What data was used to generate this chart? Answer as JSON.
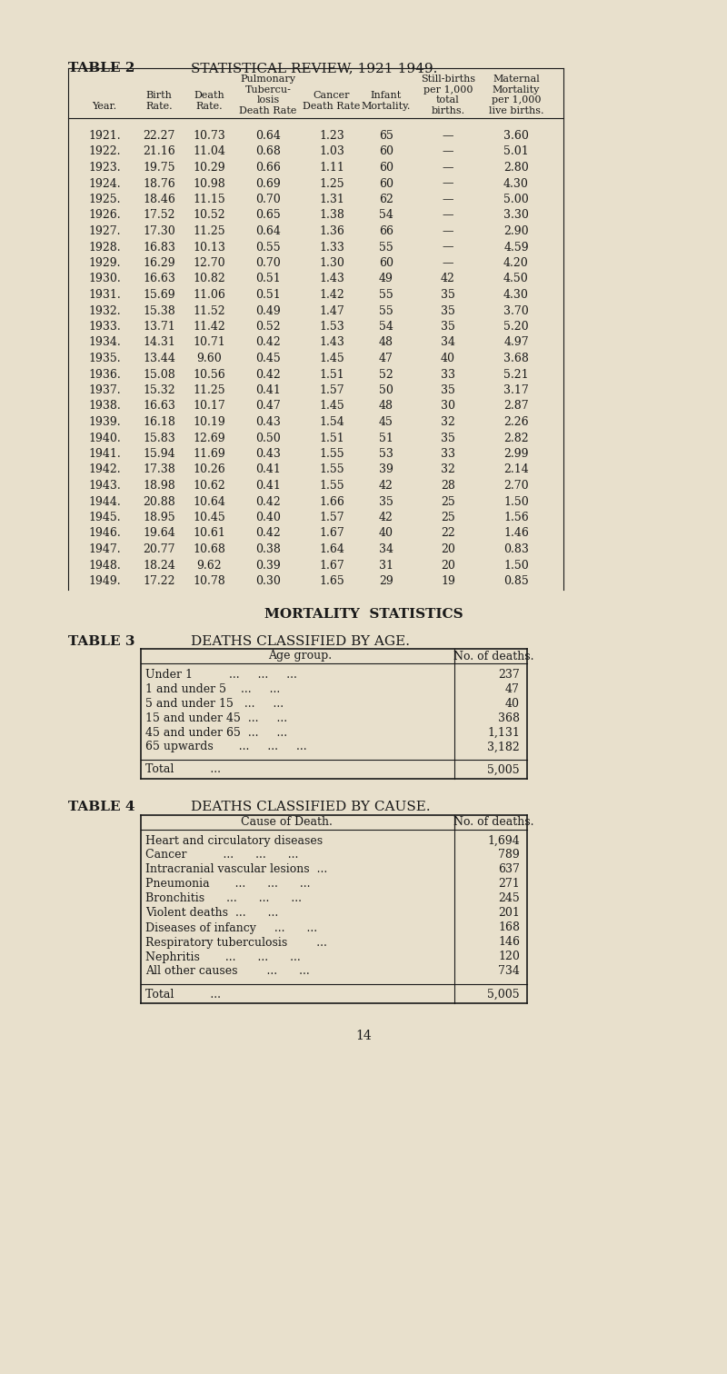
{
  "bg_color": "#e8e0cc",
  "text_color": "#1a1a1a",
  "table2_title": "TABLE 2",
  "table2_subtitle": "STATISTICAL REVIEW, 1921-1949.",
  "table2_headers": [
    "Year.",
    "Birth\nRate.",
    "Death\nRate.",
    "Pulmonary\nTubercu-\nlosis\nDeath Rate",
    "Cancer\nDeath Rate",
    "Infant\nMortality.",
    "Still-births\nper 1,000\ntotal\nbirths.",
    "Maternal\nMortality\nper 1,000\nlive births."
  ],
  "table2_data": [
    [
      "1921.",
      "22.27",
      "10.73",
      "0.64",
      "1.23",
      "65",
      "—",
      "3.60"
    ],
    [
      "1922.",
      "21.16",
      "11.04",
      "0.68",
      "1.03",
      "60",
      "—",
      "5.01"
    ],
    [
      "1923.",
      "19.75",
      "10.29",
      "0.66",
      "1.11",
      "60",
      "—",
      "2.80"
    ],
    [
      "1924.",
      "18.76",
      "10.98",
      "0.69",
      "1.25",
      "60",
      "—",
      "4.30"
    ],
    [
      "1925.",
      "18.46",
      "11.15",
      "0.70",
      "1.31",
      "62",
      "—",
      "5.00"
    ],
    [
      "1926.",
      "17.52",
      "10.52",
      "0.65",
      "1.38",
      "54",
      "—",
      "3.30"
    ],
    [
      "1927.",
      "17.30",
      "11.25",
      "0.64",
      "1.36",
      "66",
      "—",
      "2.90"
    ],
    [
      "1928.",
      "16.83",
      "10.13",
      "0.55",
      "1.33",
      "55",
      "—",
      "4.59"
    ],
    [
      "1929.",
      "16.29",
      "12.70",
      "0.70",
      "1.30",
      "60",
      "—",
      "4.20"
    ],
    [
      "1930.",
      "16.63",
      "10.82",
      "0.51",
      "1.43",
      "49",
      "42",
      "4.50"
    ],
    [
      "1931.",
      "15.69",
      "11.06",
      "0.51",
      "1.42",
      "55",
      "35",
      "4.30"
    ],
    [
      "1932.",
      "15.38",
      "11.52",
      "0.49",
      "1.47",
      "55",
      "35",
      "3.70"
    ],
    [
      "1933.",
      "13.71",
      "11.42",
      "0.52",
      "1.53",
      "54",
      "35",
      "5.20"
    ],
    [
      "1934.",
      "14.31",
      "10.71",
      "0.42",
      "1.43",
      "48",
      "34",
      "4.97"
    ],
    [
      "1935.",
      "13.44",
      "9.60",
      "0.45",
      "1.45",
      "47",
      "40",
      "3.68"
    ],
    [
      "1936.",
      "15.08",
      "10.56",
      "0.42",
      "1.51",
      "52",
      "33",
      "5.21"
    ],
    [
      "1937.",
      "15.32",
      "11.25",
      "0.41",
      "1.57",
      "50",
      "35",
      "3.17"
    ],
    [
      "1938.",
      "16.63",
      "10.17",
      "0.47",
      "1.45",
      "48",
      "30",
      "2.87"
    ],
    [
      "1939.",
      "16.18",
      "10.19",
      "0.43",
      "1.54",
      "45",
      "32",
      "2.26"
    ],
    [
      "1940.",
      "15.83",
      "12.69",
      "0.50",
      "1.51",
      "51",
      "35",
      "2.82"
    ],
    [
      "1941.",
      "15.94",
      "11.69",
      "0.43",
      "1.55",
      "53",
      "33",
      "2.99"
    ],
    [
      "1942.",
      "17.38",
      "10.26",
      "0.41",
      "1.55",
      "39",
      "32",
      "2.14"
    ],
    [
      "1943.",
      "18.98",
      "10.62",
      "0.41",
      "1.55",
      "42",
      "28",
      "2.70"
    ],
    [
      "1944.",
      "20.88",
      "10.64",
      "0.42",
      "1.66",
      "35",
      "25",
      "1.50"
    ],
    [
      "1945.",
      "18.95",
      "10.45",
      "0.40",
      "1.57",
      "42",
      "25",
      "1.56"
    ],
    [
      "1946.",
      "19.64",
      "10.61",
      "0.42",
      "1.67",
      "40",
      "22",
      "1.46"
    ],
    [
      "1947.",
      "20.77",
      "10.68",
      "0.38",
      "1.64",
      "34",
      "20",
      "0.83"
    ],
    [
      "1948.",
      "18.24",
      "9.62",
      "0.39",
      "1.67",
      "31",
      "20",
      "1.50"
    ],
    [
      "1949.",
      "17.22",
      "10.78",
      "0.30",
      "1.65",
      "29",
      "19",
      "0.85"
    ]
  ],
  "mortality_subtitle": "MORTALITY  STATISTICS",
  "table3_title": "TABLE 3",
  "table3_subtitle": "DEATHS CLASSIFIED BY AGE.",
  "table3_headers": [
    "Age group.",
    "No. of deaths."
  ],
  "table3_data": [
    [
      "Under 1          ...       ...       ...",
      "237"
    ],
    [
      "1 and under 5    ...       ...",
      "47"
    ],
    [
      "5 and under 15   ...       ...",
      "40"
    ],
    [
      "15 and under 45  ...       ...",
      "368"
    ],
    [
      "45 and under 65  ...       ...",
      "1,131"
    ],
    [
      "65 upwards       ...       ...       ...",
      "3,182"
    ]
  ],
  "table3_total_label": "Total          ...",
  "table3_total_value": "5,005",
  "table4_title": "TABLE 4",
  "table4_subtitle": "DEATHS CLASSIFIED BY CAUSE.",
  "table4_headers": [
    "Cause of Death.",
    "No. of deaths."
  ],
  "table4_data": [
    [
      "Heart and circulatory diseases",
      "1,694"
    ],
    [
      "Cancer          ...       ...       ...",
      "789"
    ],
    [
      "Intracranial vascular lesions  ...",
      "637"
    ],
    [
      "Pneumonia        ...       ...       ...",
      "271"
    ],
    [
      "Bronchitis       ...       ...       ...",
      "245"
    ],
    [
      "Violent deaths   ...       ...",
      "201"
    ],
    [
      "Diseases of infancy    ...       ...",
      "168"
    ],
    [
      "Respiratory tuberculosis       ...",
      "146"
    ],
    [
      "Nephritis        ...       ...       ...",
      "120"
    ],
    [
      "All other causes       ...       ...",
      "734"
    ]
  ],
  "table4_total_label": "Total          ...",
  "table4_total_value": "5,005",
  "page_number": "14"
}
